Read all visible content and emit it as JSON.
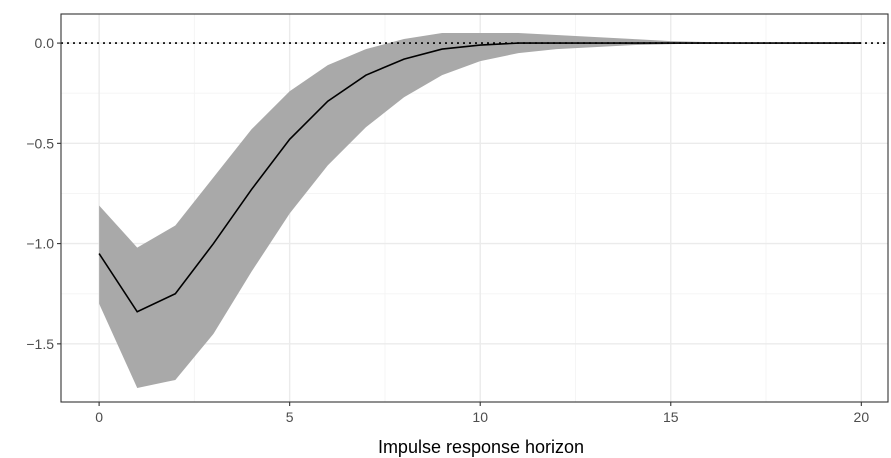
{
  "chart_data": {
    "type": "line",
    "title": "",
    "xlabel": "Impulse response horizon",
    "ylabel": "",
    "xlim": [
      -1,
      20.7
    ],
    "ylim": [
      -1.79,
      0.145
    ],
    "x_ticks": [
      0,
      5,
      10,
      15,
      20
    ],
    "x_tick_labels": [
      "0",
      "5",
      "10",
      "15",
      "20"
    ],
    "y_ticks": [
      0.0,
      -0.5,
      -1.0,
      -1.5
    ],
    "y_tick_labels": [
      "0.0",
      "−0.5",
      "−1.0",
      "−1.5"
    ],
    "grid": true,
    "reference_line": {
      "y": 0,
      "style": "dotted"
    },
    "x": [
      0,
      1,
      2,
      3,
      4,
      5,
      6,
      7,
      8,
      9,
      10,
      11,
      12,
      13,
      14,
      15,
      16,
      17,
      18,
      19,
      20
    ],
    "series": [
      {
        "role": "point_estimate",
        "values": [
          -1.05,
          -1.34,
          -1.25,
          -1.0,
          -0.73,
          -0.48,
          -0.29,
          -0.16,
          -0.08,
          -0.03,
          -0.01,
          0.0,
          0.0,
          0.0,
          0.0,
          0.0,
          0.0,
          0.0,
          0.0,
          0.0,
          0.0
        ]
      },
      {
        "role": "band_upper",
        "values": [
          -0.81,
          -1.02,
          -0.91,
          -0.67,
          -0.43,
          -0.24,
          -0.11,
          -0.03,
          0.02,
          0.05,
          0.05,
          0.05,
          0.04,
          0.03,
          0.02,
          0.01,
          0.005,
          0.002,
          0.001,
          0.0,
          0.0
        ]
      },
      {
        "role": "band_lower",
        "values": [
          -1.3,
          -1.72,
          -1.68,
          -1.45,
          -1.14,
          -0.85,
          -0.61,
          -0.42,
          -0.27,
          -0.16,
          -0.09,
          -0.05,
          -0.03,
          -0.02,
          -0.01,
          -0.005,
          -0.002,
          -0.001,
          0.0,
          0.0,
          0.0
        ]
      }
    ],
    "colors": {
      "background": "#ffffff",
      "panel_border": "#333333",
      "grid_major": "#ebebeb",
      "grid_minor": "#f5f5f5",
      "band": "#a9a9a9",
      "line": "#000000",
      "reference_line": "#000000",
      "tick_label": "#4d4d4d",
      "axis_title": "#000000"
    }
  }
}
